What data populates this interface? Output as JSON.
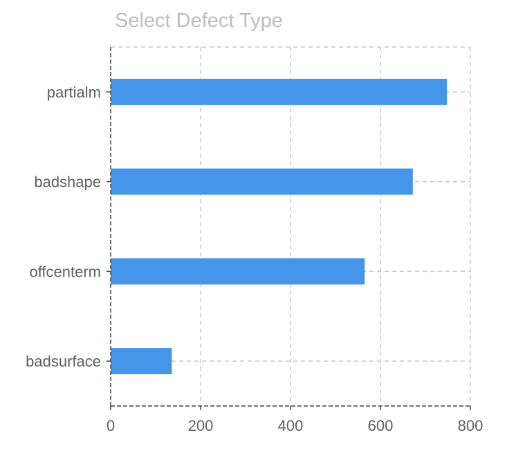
{
  "chart_data": {
    "type": "bar",
    "orientation": "horizontal",
    "title": "Select Defect Type",
    "categories": [
      "partialm",
      "badshape",
      "offcenterm",
      "badsurface"
    ],
    "values": [
      748,
      672,
      565,
      136
    ],
    "xlim": [
      0,
      800
    ],
    "xticks": [
      0,
      200,
      400,
      600,
      800
    ],
    "xlabel": "",
    "ylabel": "",
    "grid": true,
    "colors": {
      "bar": "#4595ea",
      "grid": "#c8c8c8",
      "axis": "#444444"
    }
  }
}
